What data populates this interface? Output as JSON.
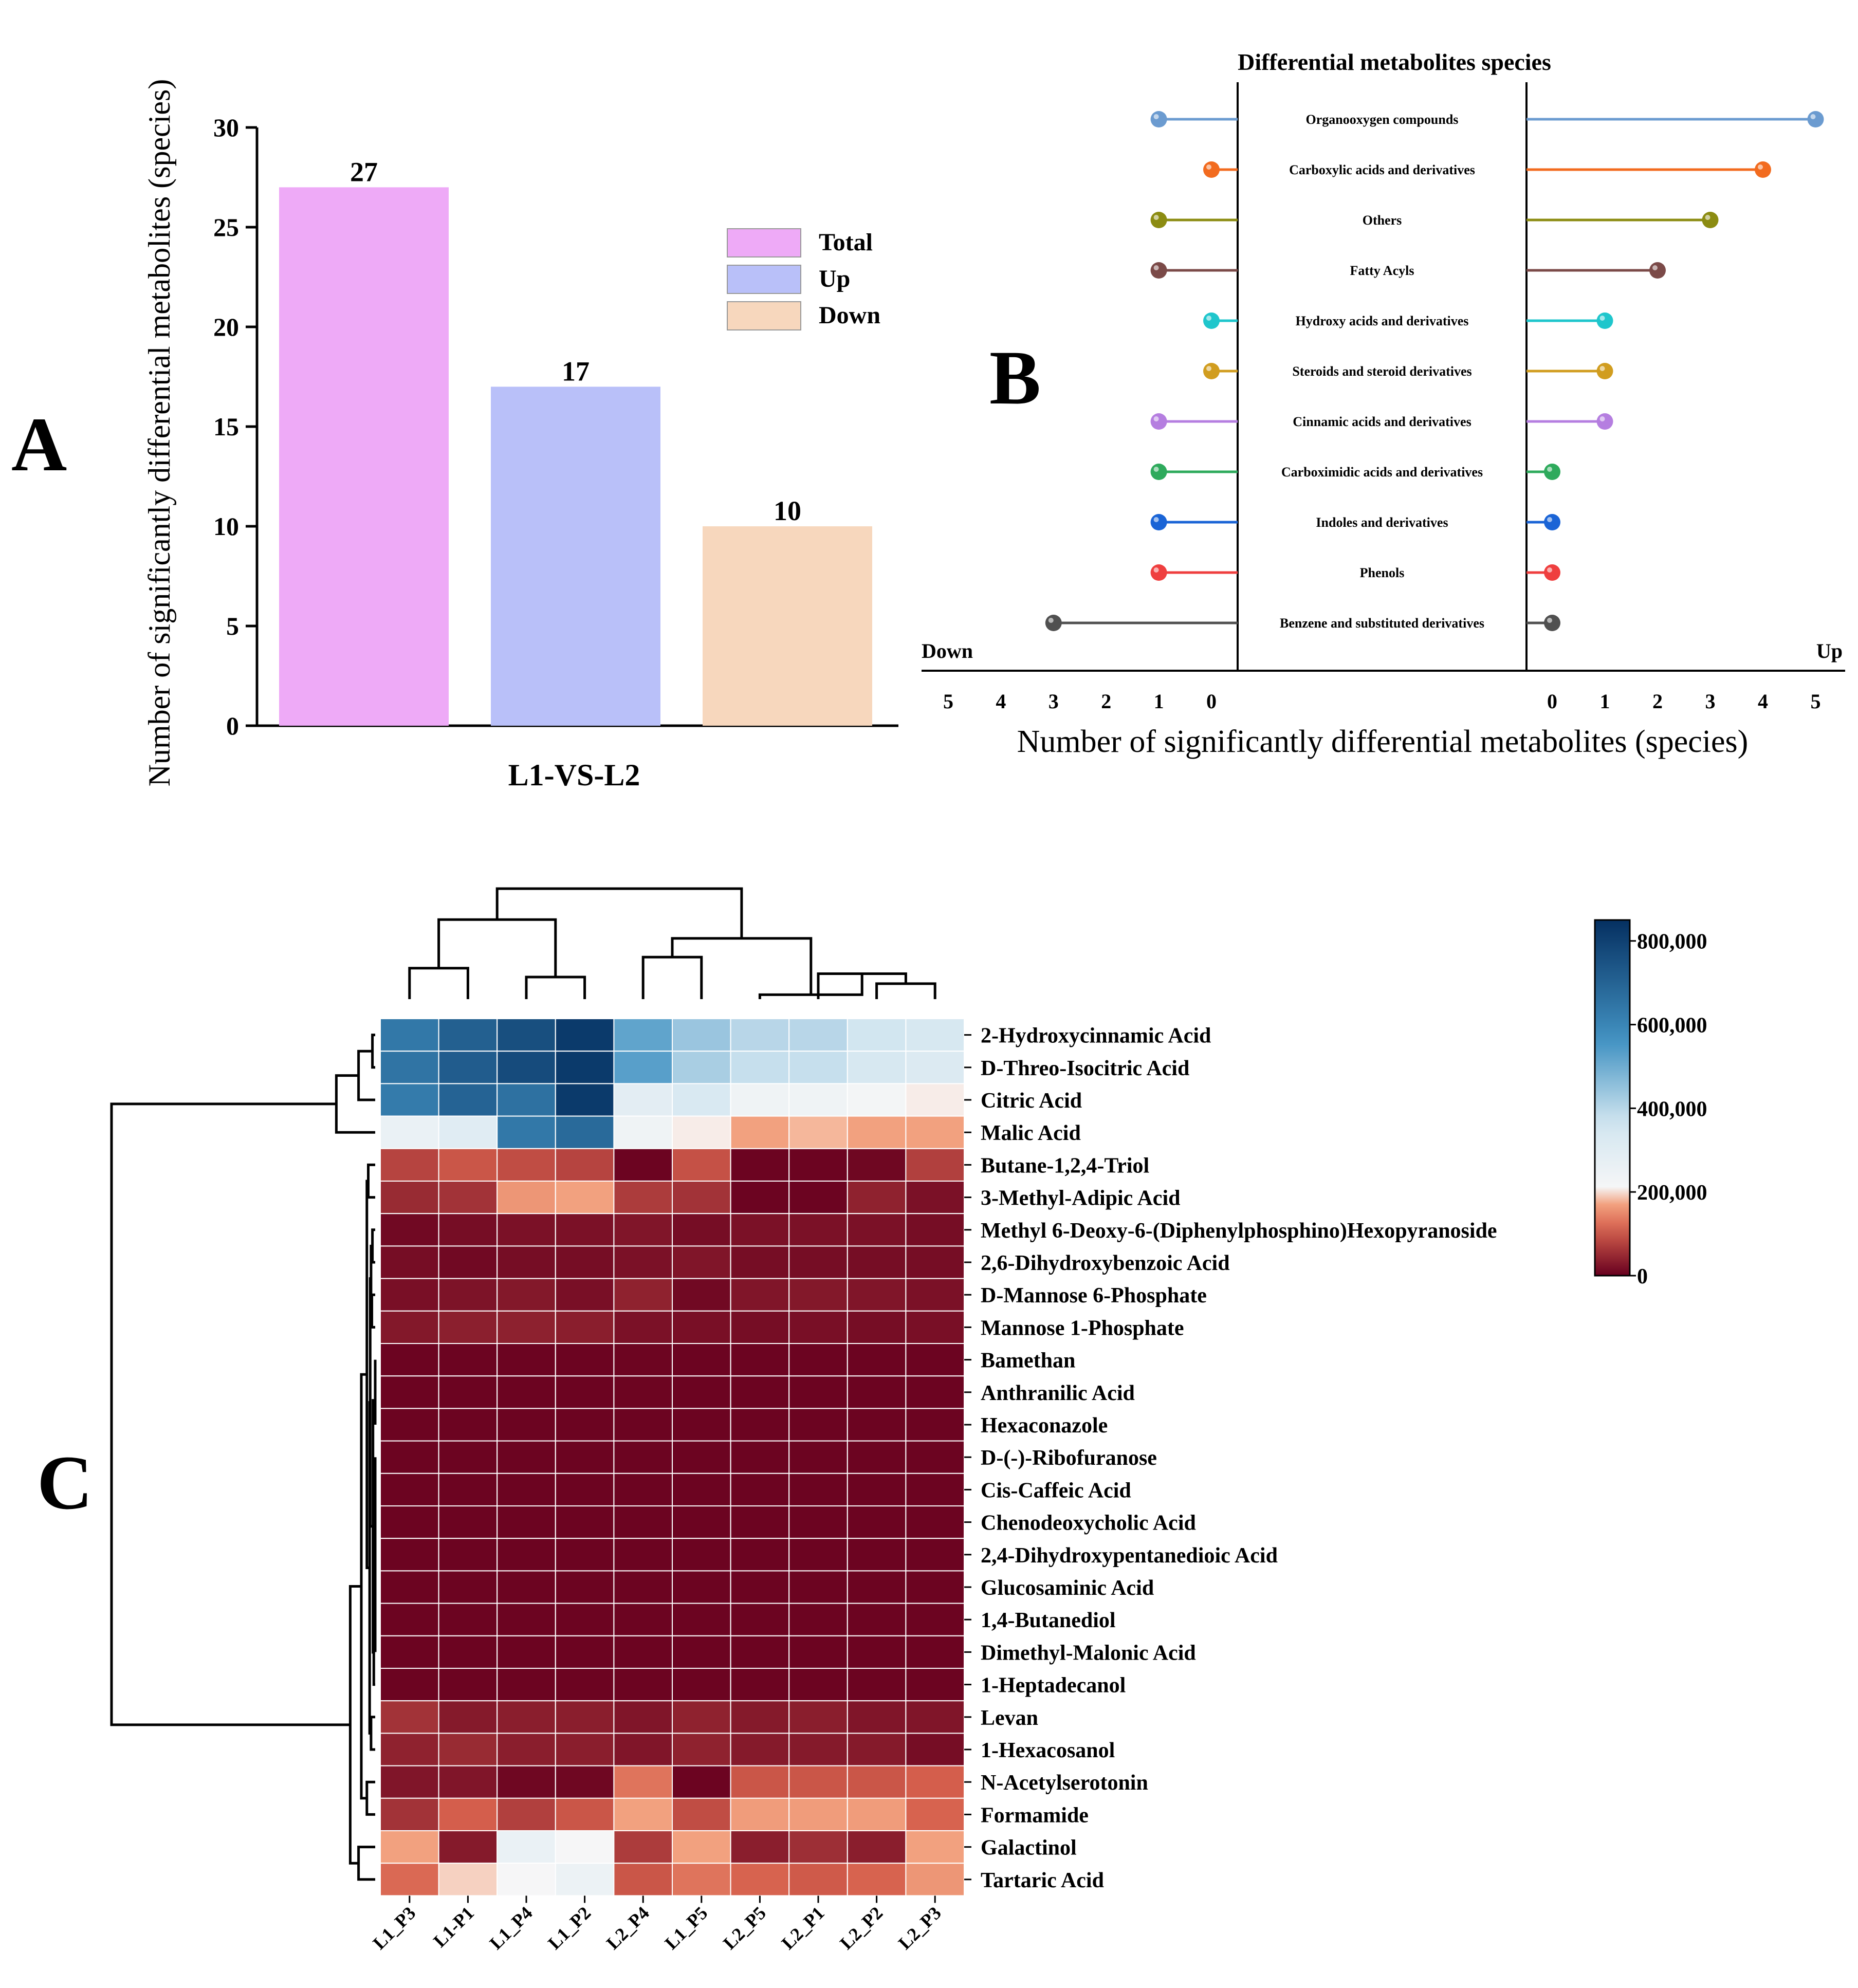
{
  "panels": {
    "a": "A",
    "b": "B",
    "c": "C"
  },
  "chart_data": [
    {
      "type": "bar",
      "panel": "A",
      "categories": [
        "Total",
        "Up",
        "Down"
      ],
      "values": [
        27,
        17,
        10
      ],
      "colors": [
        "#eeaaf7",
        "#b9c0f9",
        "#f7d7bd"
      ],
      "title": "",
      "xlabel": "L1-VS-L2",
      "ylabel": "Number of significantly differential metabolites (species)",
      "ylim": [
        0,
        30
      ],
      "yticks": [
        0,
        5,
        10,
        15,
        20,
        25,
        30
      ],
      "legend": [
        "Total",
        "Up",
        "Down"
      ],
      "legend_position": "top-right"
    },
    {
      "type": "lollipop",
      "panel": "B",
      "title": "Differential metabolites species",
      "categories": [
        "Organooxygen compounds",
        "Carboxylic acids and derivatives",
        "Others",
        "Fatty Acyls",
        "Hydroxy acids and derivatives",
        "Steroids and steroid derivatives",
        "Cinnamic acids and derivatives",
        "Carboximidic acids and derivatives",
        "Indoles and derivatives",
        "Phenols",
        "Benzene and substituted derivatives"
      ],
      "down": [
        1,
        0,
        1,
        1,
        0,
        0,
        1,
        1,
        1,
        1,
        3
      ],
      "up": [
        5,
        4,
        3,
        2,
        1,
        1,
        1,
        0,
        0,
        0,
        0
      ],
      "colors": [
        "#6b9bd0",
        "#f26b1f",
        "#8c8c12",
        "#7b4a48",
        "#1fc6cc",
        "#d19d1f",
        "#b57ee0",
        "#2eaa5c",
        "#1a64d6",
        "#ef3f3f",
        "#505050"
      ],
      "down_label": "Down",
      "up_label": "Up",
      "xticks_down": [
        5,
        4,
        3,
        2,
        1,
        0
      ],
      "xticks_up": [
        0,
        1,
        2,
        3,
        4,
        5
      ],
      "xlabel": "Number of significantly differential metabolites (species)"
    },
    {
      "type": "heatmap",
      "panel": "C",
      "columns": [
        "L1_P3",
        "L1-P1",
        "L1_P4",
        "L1_P2",
        "L2_P4",
        "L1_P5",
        "L2_P5",
        "L2_P1",
        "L2_P2",
        "L2_P3"
      ],
      "rows": [
        "2-Hydroxycinnamic Acid",
        "D-Threo-Isocitric Acid",
        "Citric Acid",
        "Malic Acid",
        "Butane-1,2,4-Triol",
        "3-Methyl-Adipic Acid",
        "Methyl 6-Deoxy-6-(Diphenylphosphino)Hexopyranoside",
        "2,6-Dihydroxybenzoic Acid",
        "D-Mannose 6-Phosphate",
        "Mannose 1-Phosphate",
        "Bamethan",
        "Anthranilic Acid",
        "Hexaconazole",
        "D-(-)-Ribofuranose",
        "Cis-Caffeic Acid",
        "Chenodeoxycholic Acid",
        "2,4-Dihydroxypentanedioic Acid",
        "Glucosaminic Acid",
        "1,4-Butanediol",
        "Dimethyl-Malonic Acid",
        "1-Heptadecanol",
        "Levan",
        "1-Hexacosanol",
        "N-Acetylserotonin",
        "Formamide",
        "Galactinol",
        "Tartaric Acid"
      ],
      "values": [
        [
          640000,
          710000,
          760000,
          820000,
          520000,
          440000,
          400000,
          400000,
          360000,
          340000
        ],
        [
          650000,
          720000,
          770000,
          820000,
          530000,
          420000,
          380000,
          380000,
          340000,
          320000
        ],
        [
          630000,
          700000,
          660000,
          820000,
          290000,
          330000,
          240000,
          240000,
          220000,
          200000
        ],
        [
          260000,
          300000,
          640000,
          680000,
          240000,
          200000,
          170000,
          180000,
          170000,
          170000
        ],
        [
          80000,
          100000,
          90000,
          80000,
          5000,
          95000,
          5000,
          5000,
          8000,
          75000
        ],
        [
          50000,
          60000,
          160000,
          170000,
          70000,
          60000,
          5000,
          5000,
          40000,
          20000
        ],
        [
          10000,
          15000,
          20000,
          20000,
          25000,
          15000,
          20000,
          20000,
          20000,
          15000
        ],
        [
          15000,
          10000,
          15000,
          15000,
          20000,
          25000,
          15000,
          15000,
          15000,
          15000
        ],
        [
          18000,
          22000,
          28000,
          18000,
          40000,
          10000,
          25000,
          28000,
          25000,
          20000
        ],
        [
          28000,
          36000,
          38000,
          35000,
          20000,
          18000,
          15000,
          18000,
          15000,
          18000
        ],
        [
          5000,
          5000,
          5000,
          5000,
          6000,
          5000,
          5000,
          5000,
          5000,
          5000
        ],
        [
          5000,
          5000,
          5000,
          5000,
          6000,
          5000,
          5000,
          5000,
          5000,
          5000
        ],
        [
          5000,
          5000,
          5000,
          5000,
          5000,
          5000,
          5000,
          5000,
          5000,
          5000
        ],
        [
          5000,
          5000,
          5000,
          5000,
          5000,
          5000,
          5000,
          5000,
          5000,
          5000
        ],
        [
          5000,
          5000,
          5000,
          5000,
          5000,
          5000,
          5000,
          5000,
          5000,
          5000
        ],
        [
          5000,
          5000,
          5000,
          5000,
          5000,
          5000,
          5000,
          5000,
          5000,
          5000
        ],
        [
          5000,
          5000,
          5000,
          5000,
          5000,
          5000,
          5000,
          5000,
          5000,
          5000
        ],
        [
          5000,
          5000,
          5000,
          5000,
          5000,
          5000,
          5000,
          5000,
          5000,
          5000
        ],
        [
          5000,
          5000,
          5000,
          5000,
          5000,
          5000,
          5000,
          5000,
          5000,
          5000
        ],
        [
          5000,
          5000,
          5000,
          5000,
          5000,
          5000,
          5000,
          5000,
          5000,
          5000
        ],
        [
          5000,
          5000,
          5000,
          5000,
          5000,
          5000,
          5000,
          5000,
          5000,
          5000
        ],
        [
          60000,
          30000,
          35000,
          35000,
          25000,
          40000,
          30000,
          35000,
          25000,
          25000
        ],
        [
          40000,
          50000,
          35000,
          35000,
          25000,
          40000,
          30000,
          30000,
          30000,
          15000
        ],
        [
          25000,
          25000,
          8000,
          8000,
          130000,
          5000,
          100000,
          100000,
          100000,
          110000
        ],
        [
          60000,
          110000,
          75000,
          100000,
          170000,
          90000,
          165000,
          165000,
          165000,
          115000
        ],
        [
          170000,
          30000,
          260000,
          210000,
          70000,
          170000,
          35000,
          55000,
          35000,
          170000
        ],
        [
          120000,
          190000,
          210000,
          250000,
          100000,
          130000,
          115000,
          105000,
          115000,
          160000
        ]
      ],
      "colorbar": {
        "min": 0,
        "max": 850000,
        "ticks": [
          "800,000",
          "600,000",
          "400,000",
          "200,000",
          "0"
        ],
        "tick_values": [
          800000,
          600000,
          400000,
          200000,
          0
        ]
      },
      "colors": {
        "low": "#67001f",
        "mid": "#f7f7f7",
        "high": "#053061"
      }
    }
  ]
}
